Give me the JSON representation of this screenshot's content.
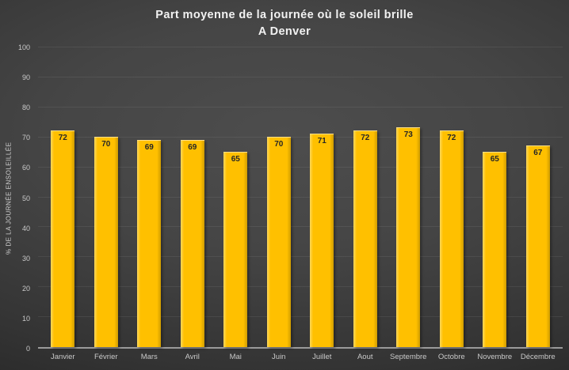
{
  "title": {
    "line1": "Part moyenne de la journée où le soleil brille",
    "line2": "A Denver"
  },
  "chart_data": {
    "type": "bar",
    "title": "Part moyenne de la journée où le soleil brille — A Denver",
    "categories": [
      "Janvier",
      "Février",
      "Mars",
      "Avril",
      "Mai",
      "Juin",
      "Juillet",
      "Aout",
      "Septembre",
      "Octobre",
      "Novembre",
      "Décembre"
    ],
    "values": [
      72,
      70,
      69,
      69,
      65,
      70,
      71,
      72,
      73,
      72,
      65,
      67
    ],
    "xlabel": "",
    "ylabel": "% DE LA JOURNÉE ENSOLEILLÉE",
    "ylim": [
      0,
      100
    ],
    "yticks": [
      0,
      10,
      20,
      30,
      40,
      50,
      60,
      70,
      80,
      90,
      100
    ],
    "grid": true,
    "legend": false,
    "value_labels": "inside-top",
    "colors": {
      "bar": "#FFC000",
      "value_label": "#262626",
      "axis": "#9a9a9a",
      "tick_label": "#c9c9c9",
      "title_text": "#f2f2f2",
      "background_center": "#4d4d4d",
      "background_edge": "#222222"
    }
  }
}
